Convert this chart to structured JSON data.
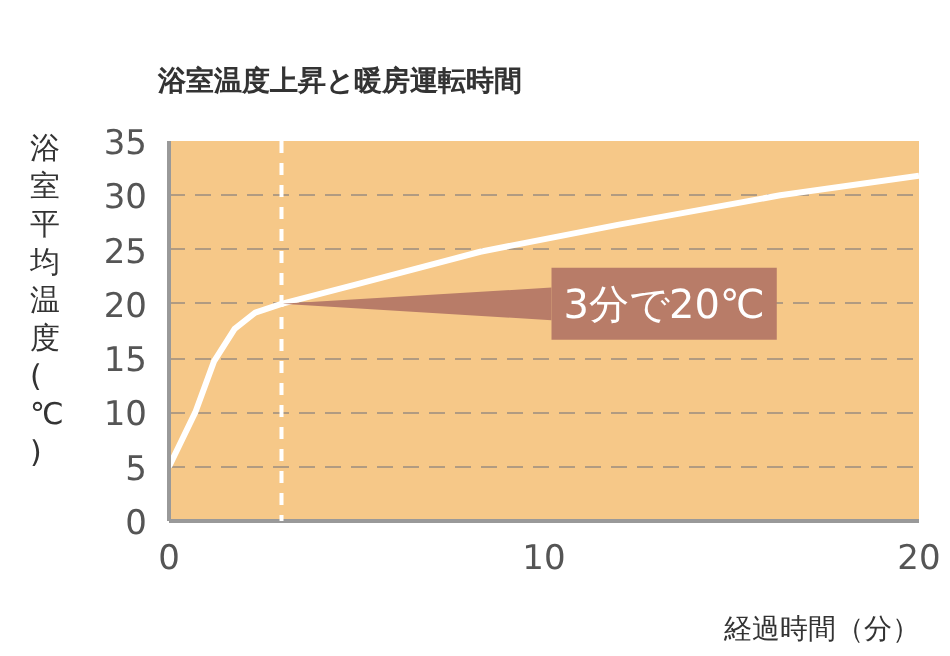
{
  "chart_data": {
    "type": "line",
    "title": "浴室温度上昇と暖房運転時間",
    "xlabel": "経過時間（分）",
    "ylabel": "浴室平均温度(℃)",
    "series": [
      {
        "color": "#ffffff",
        "x": [
          0,
          0.7,
          1.2,
          1.75,
          2.3,
          3,
          5,
          8.3,
          12,
          16.3,
          20
        ],
        "values": [
          5,
          10,
          14.7,
          17.7,
          19.2,
          20,
          21.8,
          24.8,
          27.3,
          30,
          31.8
        ]
      }
    ],
    "xlim": [
      0,
      20
    ],
    "xticks": [
      0,
      10,
      20
    ],
    "ylim": [
      0,
      35
    ],
    "yticks": [
      0,
      5,
      10,
      15,
      20,
      25,
      30,
      35
    ],
    "grid": "y",
    "line_style": "solid",
    "ref_lines": [
      {
        "axis": "x",
        "value": 3,
        "color": "#ffffff",
        "line_style": "dashed"
      }
    ],
    "annotations": [
      {
        "text": "3分で20℃",
        "x": 3,
        "y": 20
      }
    ]
  }
}
